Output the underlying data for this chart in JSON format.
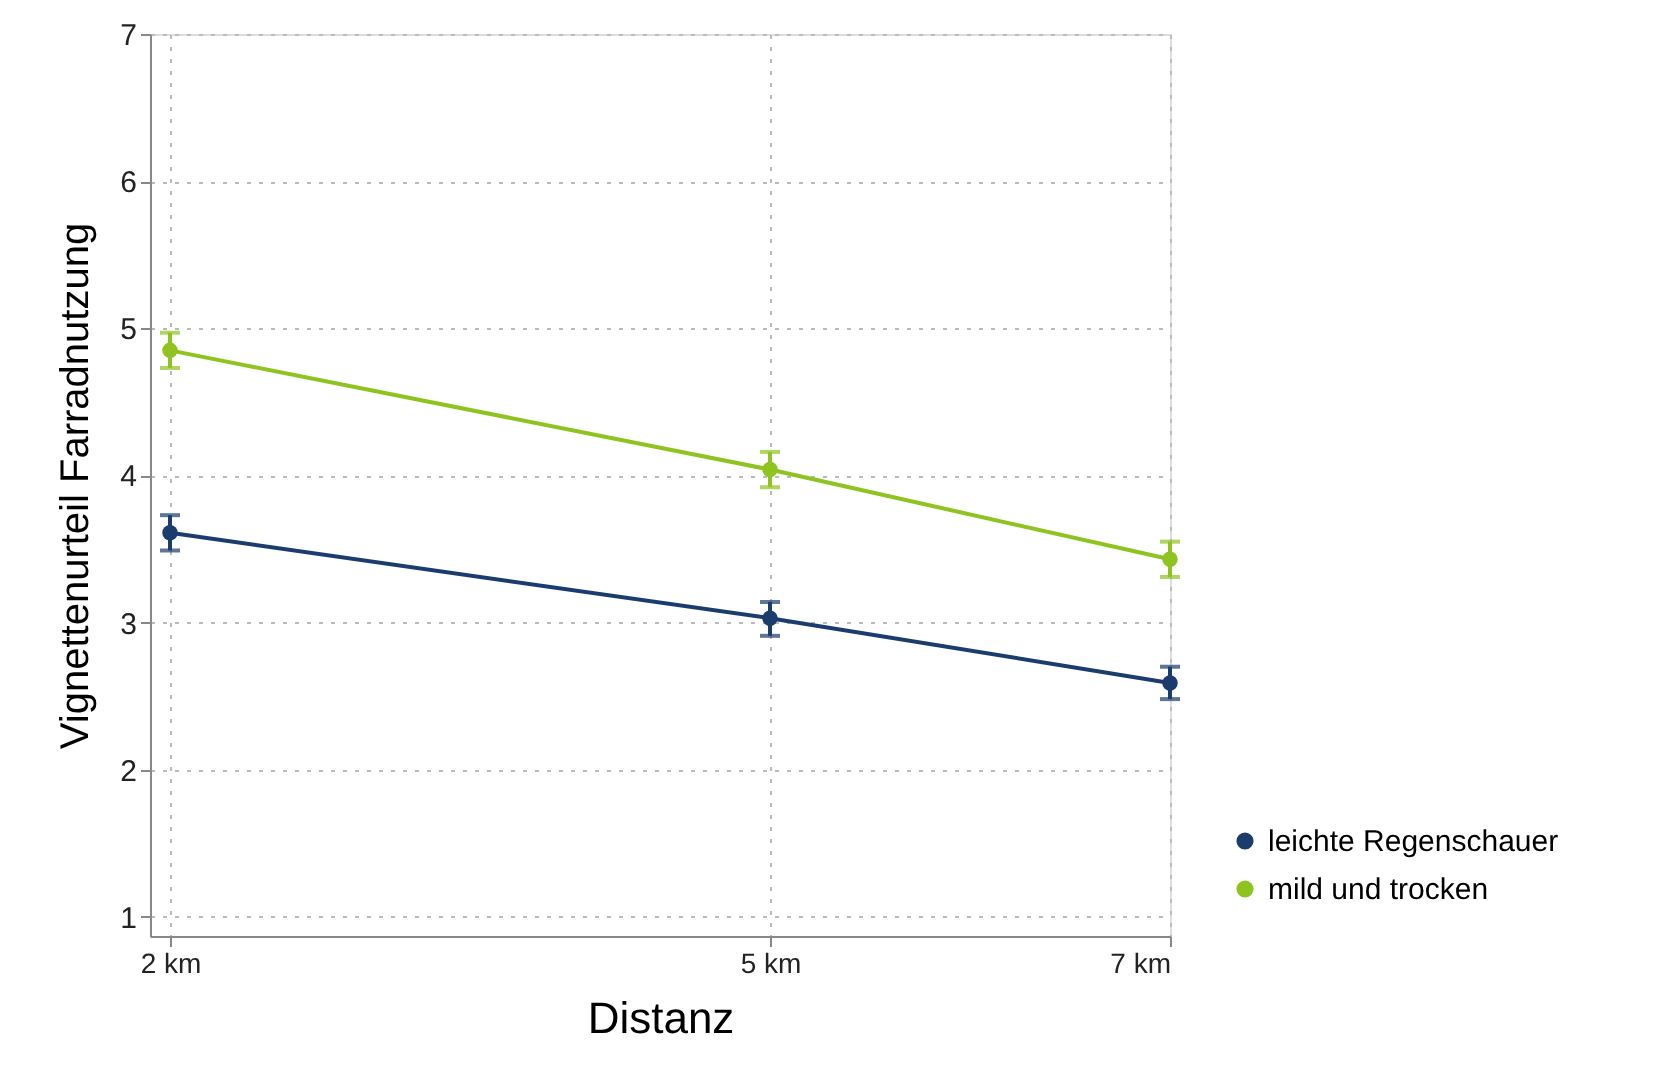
{
  "chart_data": {
    "type": "line",
    "xlabel": "Distanz",
    "ylabel": "Vignettenurteil Farradnutzung",
    "x": [
      2,
      5,
      7
    ],
    "xlim": [
      1.9,
      7
    ],
    "xticks": [
      {
        "value": 2,
        "label": "2 km"
      },
      {
        "value": 5,
        "label": "5 km"
      },
      {
        "value": 7,
        "label": "7 km"
      }
    ],
    "ylim": [
      0.87,
      7
    ],
    "yticks": [
      1,
      2,
      3,
      4,
      5,
      6,
      7
    ],
    "series": [
      {
        "name": "leichte Regenschauer",
        "color": "#1a3d6d",
        "values": [
          3.61,
          3.03,
          2.59
        ],
        "errors": [
          [
            3.49,
            3.73
          ],
          [
            2.91,
            3.14
          ],
          [
            2.48,
            2.7
          ]
        ]
      },
      {
        "name": "mild und trocken",
        "color": "#8fc31f",
        "values": [
          4.85,
          4.04,
          3.43
        ],
        "errors": [
          [
            4.73,
            4.97
          ],
          [
            3.92,
            4.16
          ],
          [
            3.31,
            3.55
          ]
        ]
      }
    ],
    "grid": true,
    "legend": "bottom right",
    "marker": "circle",
    "line_style": "solid"
  }
}
